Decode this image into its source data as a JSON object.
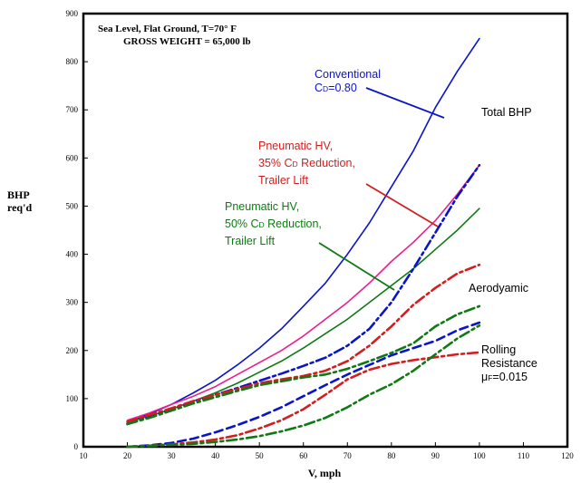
{
  "chart_data": {
    "type": "line",
    "title": "",
    "header_lines": [
      "Sea Level, Flat Ground, T=70° F",
      "GROSS WEIGHT = 65,000 lb"
    ],
    "xlabel": "V, mph",
    "ylabel": [
      "BHP",
      "req'd"
    ],
    "xlim": [
      10,
      120
    ],
    "ylim": [
      0,
      900
    ],
    "xticks": [
      10,
      20,
      30,
      40,
      50,
      60,
      70,
      80,
      90,
      100,
      110,
      120
    ],
    "yticks": [
      0,
      100,
      200,
      300,
      400,
      500,
      600,
      700,
      800,
      900
    ],
    "grid": false,
    "colors": {
      "blue": "#0a14c8",
      "red": "#d21e1e",
      "magenta": "#ee1c8c",
      "green": "#0f7a14",
      "black": "#000000"
    },
    "series": [
      {
        "color_key": "blue",
        "style": "solid",
        "x": [
          20,
          25,
          30,
          35,
          40,
          45,
          50,
          55,
          60,
          65,
          70,
          75,
          80,
          85,
          90,
          95,
          100
        ],
        "y": [
          50,
          68,
          88,
          112,
          138,
          170,
          205,
          245,
          292,
          340,
          400,
          465,
          540,
          615,
          705,
          780,
          848
        ]
      },
      {
        "color_key": "magenta",
        "style": "solid",
        "x": [
          20,
          25,
          30,
          35,
          40,
          45,
          50,
          55,
          60,
          65,
          70,
          75,
          80,
          85,
          90,
          95,
          100
        ],
        "y": [
          55,
          70,
          88,
          105,
          125,
          150,
          175,
          200,
          230,
          265,
          300,
          340,
          385,
          425,
          470,
          525,
          585
        ]
      },
      {
        "color_key": "green",
        "style": "solid",
        "x": [
          20,
          25,
          30,
          35,
          40,
          45,
          50,
          55,
          60,
          65,
          70,
          75,
          80,
          85,
          90,
          95,
          100
        ],
        "y": [
          50,
          64,
          78,
          95,
          112,
          132,
          155,
          178,
          205,
          235,
          265,
          300,
          335,
          370,
          410,
          450,
          495
        ]
      },
      {
        "color_key": "blue",
        "style": "dashdot",
        "x": [
          20,
          25,
          30,
          35,
          40,
          45,
          50,
          55,
          60,
          65,
          70,
          75,
          80,
          85,
          90,
          95,
          100
        ],
        "y": [
          47,
          62,
          78,
          94,
          108,
          122,
          137,
          152,
          168,
          185,
          210,
          245,
          300,
          370,
          445,
          520,
          585
        ]
      },
      {
        "color_key": "red",
        "style": "dashdot",
        "x": [
          20,
          25,
          30,
          35,
          40,
          45,
          50,
          55,
          60,
          65,
          70,
          75,
          80,
          85,
          90,
          95,
          100
        ],
        "y": [
          52,
          66,
          80,
          95,
          108,
          120,
          132,
          140,
          147,
          158,
          178,
          210,
          250,
          295,
          330,
          360,
          378
        ]
      },
      {
        "color_key": "green",
        "style": "dashdot",
        "x": [
          20,
          25,
          30,
          35,
          40,
          45,
          50,
          55,
          60,
          65,
          70,
          75,
          80,
          85,
          90,
          95,
          100
        ],
        "y": [
          47,
          60,
          75,
          90,
          103,
          116,
          128,
          136,
          144,
          150,
          162,
          178,
          195,
          215,
          250,
          275,
          292
        ]
      },
      {
        "color_key": "blue",
        "style": "dashed",
        "x": [
          20,
          25,
          30,
          35,
          40,
          45,
          50,
          55,
          60,
          65,
          70,
          75,
          80,
          85,
          90,
          95,
          100
        ],
        "y": [
          0,
          3,
          8,
          17,
          30,
          45,
          62,
          82,
          105,
          128,
          150,
          170,
          190,
          205,
          220,
          242,
          258
        ]
      },
      {
        "color_key": "red",
        "style": "dashdot",
        "x": [
          20,
          25,
          30,
          35,
          40,
          45,
          50,
          55,
          60,
          65,
          70,
          75,
          80,
          85,
          90,
          95,
          100
        ],
        "y": [
          0,
          2,
          5,
          9,
          15,
          24,
          38,
          55,
          78,
          108,
          140,
          160,
          172,
          180,
          186,
          192,
          196
        ]
      },
      {
        "color_key": "green",
        "style": "dashdot",
        "x": [
          20,
          25,
          30,
          35,
          40,
          45,
          50,
          55,
          60,
          65,
          70,
          75,
          80,
          85,
          90,
          95,
          100
        ],
        "y": [
          0,
          2,
          4,
          6,
          10,
          15,
          22,
          32,
          44,
          60,
          82,
          108,
          130,
          158,
          192,
          225,
          252
        ]
      }
    ],
    "annotations": [
      {
        "key": "conventional",
        "color_key": "blue",
        "lines": [
          [
            {
              "t": "Conventional"
            }
          ],
          [
            {
              "t": "C"
            },
            {
              "t": "D",
              "sub": true
            },
            {
              "t": "=0.80"
            }
          ]
        ]
      },
      {
        "key": "pneu35",
        "color_key": "red",
        "lines": [
          [
            {
              "t": "Pneumatic HV,"
            }
          ],
          [
            {
              "t": "35% C"
            },
            {
              "t": "D",
              "sub": true
            },
            {
              "t": " Reduction,"
            }
          ],
          [
            {
              "t": "Trailer Lift"
            }
          ]
        ]
      },
      {
        "key": "pneu50",
        "color_key": "green",
        "lines": [
          [
            {
              "t": "Pneumatic HV,"
            }
          ],
          [
            {
              "t": "50% C"
            },
            {
              "t": "D",
              "sub": true
            },
            {
              "t": " Reduction,"
            }
          ],
          [
            {
              "t": "Trailer Lift"
            }
          ]
        ]
      },
      {
        "key": "total",
        "color_key": "black",
        "lines": [
          [
            {
              "t": "Total BHP"
            }
          ]
        ]
      },
      {
        "key": "aero",
        "color_key": "black",
        "lines": [
          [
            {
              "t": "Aerodyamic"
            }
          ]
        ]
      },
      {
        "key": "rolling",
        "color_key": "black",
        "lines": [
          [
            {
              "t": "Rolling"
            }
          ],
          [
            {
              "t": "Resistance"
            }
          ],
          [
            {
              "t": "μ"
            },
            {
              "t": "F",
              "sub": true
            },
            {
              "t": "=0.015"
            }
          ]
        ]
      }
    ]
  }
}
